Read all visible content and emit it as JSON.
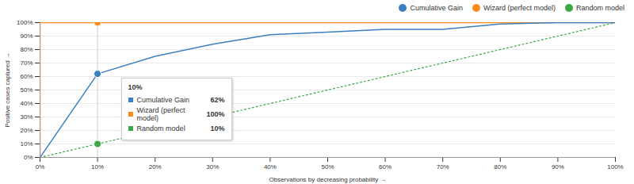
{
  "chart_data": {
    "type": "line",
    "x_label": "Observations by decreasing probability",
    "y_label": "Positive cases captured",
    "x": [
      0,
      10,
      20,
      30,
      40,
      50,
      60,
      70,
      80,
      90,
      100
    ],
    "series": [
      {
        "name": "Cumulative Gain",
        "color": "#3a7fc1",
        "values": [
          0,
          62,
          75,
          84,
          91,
          93,
          95,
          95,
          99,
          100,
          100
        ]
      },
      {
        "name": "Wizard (perfect model)",
        "color": "#ff8c1a",
        "x": [
          0,
          0,
          10,
          20,
          30,
          40,
          50,
          60,
          70,
          80,
          90,
          100
        ],
        "values": [
          0,
          100,
          100,
          100,
          100,
          100,
          100,
          100,
          100,
          100,
          100,
          100
        ]
      },
      {
        "name": "Random model",
        "color": "#3aa845",
        "line_style": "dotted",
        "values": [
          0,
          10,
          20,
          30,
          40,
          50,
          60,
          70,
          80,
          90,
          100
        ]
      }
    ],
    "xlim": [
      0,
      100
    ],
    "ylim": [
      0,
      100
    ],
    "xticks": [
      {
        "value": 0,
        "label": "0%"
      },
      {
        "value": 10,
        "label": "10%"
      },
      {
        "value": 20,
        "label": "20%"
      },
      {
        "value": 30,
        "label": "30%"
      },
      {
        "value": 40,
        "label": "40%"
      },
      {
        "value": 50,
        "label": "50%"
      },
      {
        "value": 60,
        "label": "60%"
      },
      {
        "value": 70,
        "label": "70%"
      },
      {
        "value": 80,
        "label": "80%"
      },
      {
        "value": 90,
        "label": "90%"
      },
      {
        "value": 100,
        "label": "100%"
      }
    ],
    "yticks": [
      {
        "value": 0,
        "label": "0%"
      },
      {
        "value": 10,
        "label": "10%"
      },
      {
        "value": 20,
        "label": "20%"
      },
      {
        "value": 30,
        "label": "30%"
      },
      {
        "value": 40,
        "label": "40%"
      },
      {
        "value": 50,
        "label": "50%"
      },
      {
        "value": 60,
        "label": "60%"
      },
      {
        "value": 70,
        "label": "70%"
      },
      {
        "value": 80,
        "label": "80%"
      },
      {
        "value": 90,
        "label": "90%"
      },
      {
        "value": 100,
        "label": "100%"
      }
    ],
    "grid": true,
    "legend": "top-right",
    "annotations": [
      {
        "x": 10,
        "label": "10%",
        "value_labels": [
          "62%",
          "100%",
          "10%"
        ]
      }
    ]
  }
}
